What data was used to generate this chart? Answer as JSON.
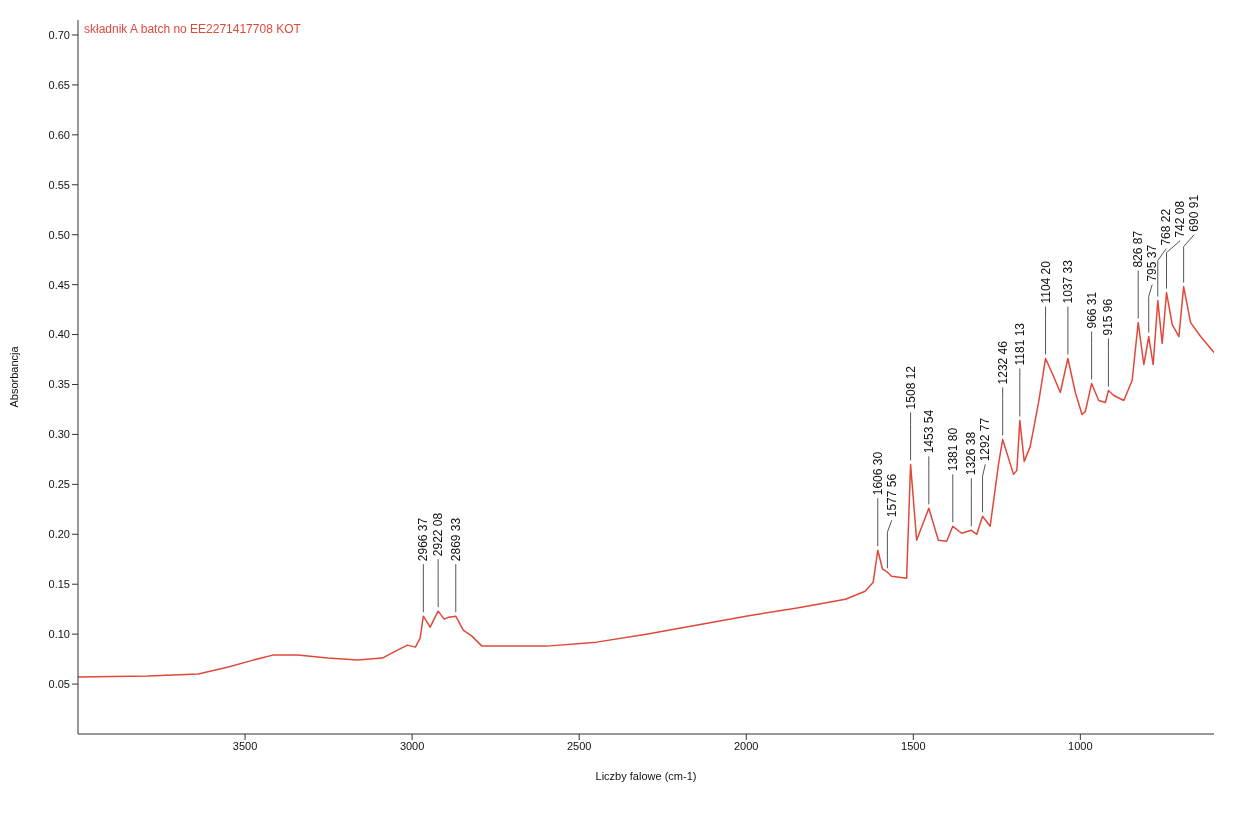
{
  "chart_data": {
    "type": "line",
    "xlabel": "Liczby falowe (cm-1)",
    "ylabel": "Absorbancja",
    "xlim": [
      4000,
      600
    ],
    "ylim": [
      0,
      0.715
    ],
    "xticks": [
      3500,
      3000,
      2500,
      2000,
      1500,
      1000
    ],
    "yticks": [
      0.05,
      {
        "value": 0.1,
        "label": "0.10"
      },
      0.15,
      {
        "value": 0.2,
        "label": "0.20"
      },
      0.25,
      {
        "value": 0.3,
        "label": "0.30"
      },
      0.35,
      {
        "value": 0.4,
        "label": "0.40"
      },
      0.45,
      {
        "value": 0.5,
        "label": "0.50"
      },
      0.55,
      {
        "value": 0.6,
        "label": "0.60"
      },
      0.65,
      {
        "value": 0.7,
        "label": "0.70"
      }
    ],
    "grid": false,
    "legend": "top left",
    "marker": "none",
    "line_style": "solid",
    "series": [
      {
        "name": "składnik A batch no EE2271417708 KOT",
        "color": "#e0483a",
        "x": [
          4000,
          3790,
          3640,
          3550,
          3476,
          3417,
          3342,
          3253,
          3163,
          3089,
          3044,
          3014,
          2990,
          2976,
          2966.37,
          2946,
          2922.08,
          2904,
          2890,
          2869.33,
          2847,
          2821,
          2791,
          2746,
          2597,
          2448,
          2299,
          2150,
          2001,
          1852,
          1703,
          1644,
          1620,
          1606.3,
          1592,
          1577.56,
          1565,
          1520,
          1508.12,
          1490,
          1453.54,
          1425,
          1400,
          1381.8,
          1355,
          1326.38,
          1310,
          1292.77,
          1270,
          1245,
          1232.46,
          1200,
          1190,
          1181.13,
          1168,
          1150,
          1125,
          1104.2,
          1080,
          1060,
          1037.33,
          1015,
          995,
          985,
          966.31,
          945,
          925,
          915.96,
          900,
          870,
          845,
          826.87,
          810,
          795.37,
          782,
          768.22,
          755,
          742.08,
          725,
          705,
          690.91,
          670,
          640,
          600
        ],
        "values": [
          0.057,
          0.058,
          0.06,
          0.067,
          0.074,
          0.079,
          0.079,
          0.076,
          0.074,
          0.076,
          0.084,
          0.089,
          0.087,
          0.096,
          0.118,
          0.107,
          0.123,
          0.115,
          0.117,
          0.118,
          0.104,
          0.098,
          0.088,
          0.088,
          0.088,
          0.092,
          0.1,
          0.109,
          0.118,
          0.126,
          0.135,
          0.143,
          0.152,
          0.184,
          0.165,
          0.162,
          0.158,
          0.156,
          0.27,
          0.194,
          0.226,
          0.194,
          0.193,
          0.208,
          0.201,
          0.204,
          0.2,
          0.218,
          0.208,
          0.27,
          0.295,
          0.26,
          0.264,
          0.314,
          0.273,
          0.288,
          0.332,
          0.376,
          0.358,
          0.342,
          0.376,
          0.342,
          0.32,
          0.323,
          0.351,
          0.334,
          0.332,
          0.344,
          0.339,
          0.334,
          0.354,
          0.412,
          0.37,
          0.398,
          0.37,
          0.434,
          0.391,
          0.442,
          0.41,
          0.398,
          0.448,
          0.412,
          0.398,
          0.382
        ]
      }
    ],
    "annotations": [
      {
        "text": "2966 37",
        "x": 2966.37,
        "y": 0.118
      },
      {
        "text": "2922 08",
        "x": 2922.08,
        "y": 0.123
      },
      {
        "text": "2869 33",
        "x": 2869.33,
        "y": 0.118
      },
      {
        "text": "1606 30",
        "x": 1606.3,
        "y": 0.184
      },
      {
        "text": "1577 56",
        "x": 1577.56,
        "y": 0.162
      },
      {
        "text": "1508 12",
        "x": 1508.12,
        "y": 0.27
      },
      {
        "text": "1453 54",
        "x": 1453.54,
        "y": 0.226
      },
      {
        "text": "1381 80",
        "x": 1381.8,
        "y": 0.208
      },
      {
        "text": "1326 38",
        "x": 1326.38,
        "y": 0.204
      },
      {
        "text": "1292 77",
        "x": 1292.77,
        "y": 0.218
      },
      {
        "text": "1232 46",
        "x": 1232.46,
        "y": 0.295
      },
      {
        "text": "1181 13",
        "x": 1181.13,
        "y": 0.314
      },
      {
        "text": "1104 20",
        "x": 1104.2,
        "y": 0.376
      },
      {
        "text": "1037 33",
        "x": 1037.33,
        "y": 0.376
      },
      {
        "text": "966 31",
        "x": 966.31,
        "y": 0.351
      },
      {
        "text": "915 96",
        "x": 915.96,
        "y": 0.344
      },
      {
        "text": "826 87",
        "x": 826.87,
        "y": 0.412
      },
      {
        "text": "795 37",
        "x": 795.37,
        "y": 0.398
      },
      {
        "text": "768 22",
        "x": 768.22,
        "y": 0.434
      },
      {
        "text": "742 08",
        "x": 742.08,
        "y": 0.442
      },
      {
        "text": "690 91",
        "x": 690.91,
        "y": 0.448
      }
    ]
  }
}
